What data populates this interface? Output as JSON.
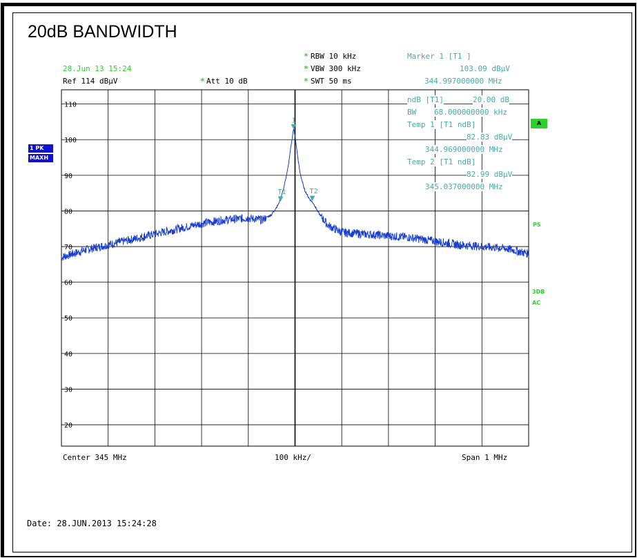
{
  "title": "20dB BANDWIDTH",
  "header": {
    "timestamp": "28.Jun 13 15:24",
    "ref": "Ref  114 dBµV",
    "att": "Att   10 dB",
    "rbw": "RBW  10 kHz",
    "vbw": "VBW  300 kHz",
    "swt": "SWT  50 ms",
    "star": "*"
  },
  "marker_readout": {
    "marker1_label": "Marker 1 [T1 ]",
    "marker1_level": "103.09 dBµV",
    "marker1_freq": "344.997000000 MHz",
    "ndb_label": "ndB [T1]",
    "ndb_value": "20.00 dB",
    "bw_label": "BW",
    "bw_value": "68.000000000 kHz",
    "temp1_label": "Temp 1 [T1 ndB]",
    "temp1_level": "82.83 dBµV",
    "temp1_freq": "344.969000000 MHz",
    "temp2_label": "Temp 2 [T1 ndB]",
    "temp2_level": "82.99 dBµV",
    "temp2_freq": "345.037000000 MHz"
  },
  "left_badges": {
    "trace": "1 PK",
    "detector": "MAXH"
  },
  "right_labels": {
    "a": "A",
    "ps": "PS",
    "db3": "3DB",
    "ac": "AC"
  },
  "footer": {
    "center": "Center  345 MHz",
    "div": "100 kHz/",
    "span": "Span  1 MHz",
    "date": "Date: 28.JUN.2013  15:24:28"
  },
  "colors": {
    "trace": "#1a3fd0",
    "grid": "#000000",
    "marker": "#47aaa9",
    "status_green": "#2cd12c"
  },
  "chart_data": {
    "type": "line",
    "x_unit": "MHz",
    "y_unit": "dBµV",
    "xlim": [
      344.5,
      345.5
    ],
    "ylim": [
      14,
      114
    ],
    "yticks": [
      20,
      30,
      40,
      50,
      60,
      70,
      80,
      90,
      100,
      110
    ],
    "ytick_labels": [
      "20",
      "30",
      "40",
      "50",
      "60",
      "70",
      "80",
      "90",
      "100",
      "110"
    ],
    "x_divisions": 10,
    "grid": true,
    "series": [
      {
        "x": [
          344.5,
          344.55,
          344.6,
          344.65,
          344.7,
          344.75,
          344.8,
          344.85,
          344.9,
          344.93,
          344.95,
          344.965,
          344.975,
          344.985,
          344.99,
          344.995,
          344.997,
          345.0,
          345.005,
          345.01,
          345.02,
          345.03,
          345.04,
          345.05,
          345.07,
          345.1,
          345.15,
          345.2,
          345.25,
          345.3,
          345.35,
          345.4,
          345.45,
          345.5
        ],
        "y": [
          67,
          69,
          70.5,
          72,
          73.5,
          75,
          76.5,
          77.5,
          78,
          77.5,
          79,
          82,
          86,
          92,
          97,
          101.5,
          103,
          101,
          96,
          91,
          86,
          83.5,
          82,
          79.5,
          76,
          74,
          73.5,
          73,
          72.5,
          71.5,
          70.5,
          70,
          69.5,
          68
        ]
      }
    ],
    "markers": [
      {
        "label": "1",
        "x": 344.997,
        "y": 103.09
      },
      {
        "label": "T1",
        "x": 344.969,
        "y": 82.83
      },
      {
        "label": "T2",
        "x": 345.037,
        "y": 82.99
      }
    ]
  }
}
